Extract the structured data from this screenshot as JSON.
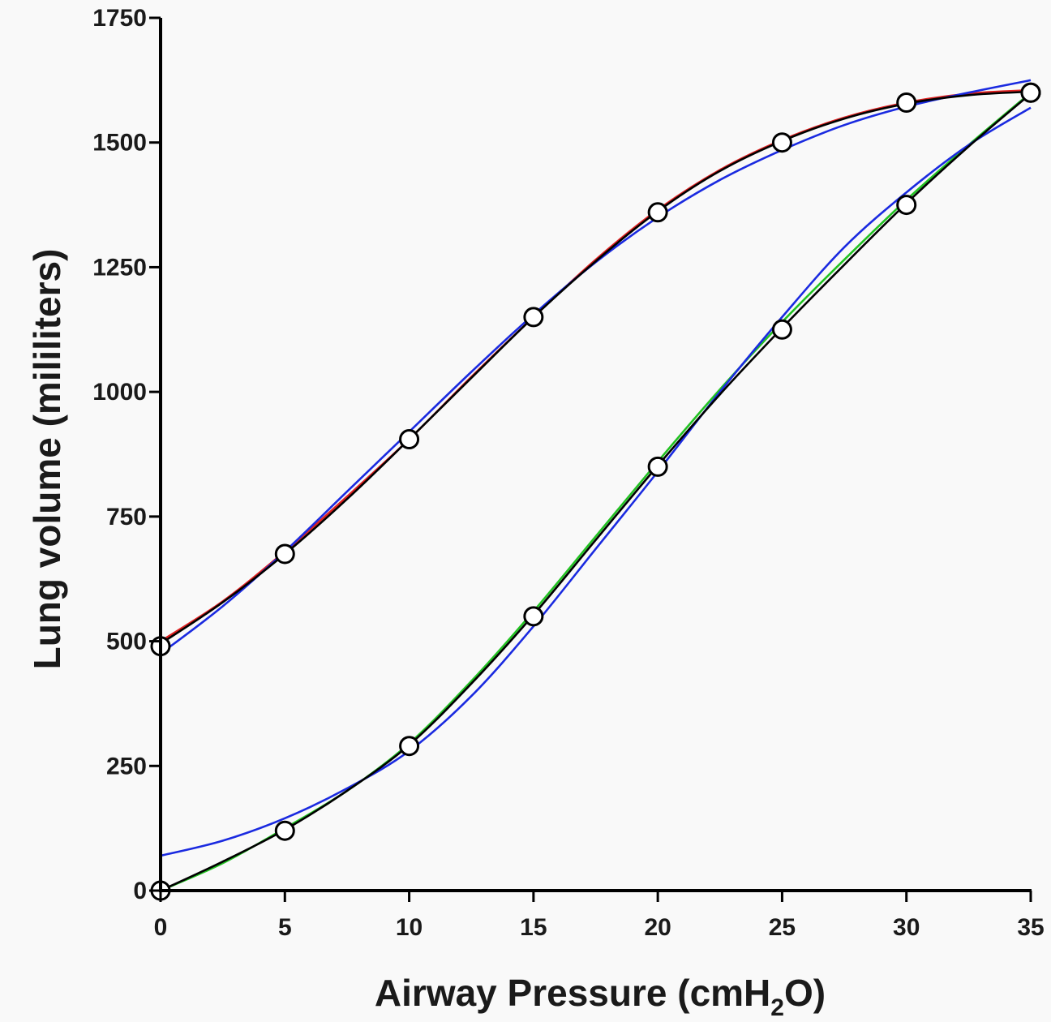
{
  "chart_data": {
    "type": "line",
    "title": "",
    "xlabel": "Airway Pressure (cmH",
    "xlabel_sub": "2",
    "xlabel_end": "O)",
    "ylabel": "Lung volume (mililiters)",
    "xlim": [
      0,
      35
    ],
    "ylim": [
      0,
      1750
    ],
    "x_ticks": [
      0,
      5,
      10,
      15,
      20,
      25,
      30,
      35
    ],
    "y_ticks": [
      0,
      250,
      500,
      750,
      1000,
      1250,
      1500,
      1750
    ],
    "grid": false,
    "legend": "none",
    "colors": {
      "red": "#e02020",
      "green": "#22c222",
      "blue": "#1a2ae0",
      "black": "#000000"
    },
    "series": [
      {
        "kind": "markers",
        "x": [
          0,
          5,
          10,
          15,
          20,
          25,
          30,
          35
        ],
        "y": [
          490,
          675,
          905,
          1150,
          1360,
          1500,
          1580,
          1600
        ]
      },
      {
        "kind": "markers",
        "x": [
          0,
          5,
          10,
          15,
          20,
          25,
          30,
          35
        ],
        "y": [
          0,
          120,
          290,
          550,
          850,
          1125,
          1375,
          1600
        ]
      },
      {
        "kind": "line",
        "color": "red",
        "x": [
          0,
          2.5,
          5,
          7.5,
          10,
          12.5,
          15,
          17.5,
          20,
          22.5,
          25,
          27.5,
          30,
          32.5,
          35
        ],
        "y": [
          500,
          580,
          680,
          790,
          905,
          1030,
          1150,
          1265,
          1365,
          1445,
          1505,
          1550,
          1580,
          1598,
          1605
        ]
      },
      {
        "kind": "line",
        "color": "blue",
        "x": [
          0,
          2.5,
          5,
          7.5,
          10,
          12.5,
          15,
          17.5,
          20,
          22.5,
          25,
          27.5,
          30,
          32.5,
          35
        ],
        "y": [
          475,
          570,
          680,
          800,
          920,
          1040,
          1155,
          1260,
          1350,
          1425,
          1485,
          1535,
          1572,
          1600,
          1625
        ]
      },
      {
        "kind": "line",
        "color": "black",
        "x": [
          0,
          2.5,
          5,
          7.5,
          10,
          12.5,
          15,
          17.5,
          20,
          22.5,
          25,
          27.5,
          30,
          32.5,
          35
        ],
        "y": [
          495,
          578,
          675,
          785,
          905,
          1028,
          1150,
          1262,
          1362,
          1443,
          1503,
          1548,
          1578,
          1595,
          1602
        ]
      },
      {
        "kind": "line",
        "color": "green",
        "x": [
          0,
          2.5,
          5,
          7.5,
          10,
          12.5,
          15,
          17.5,
          20,
          22.5,
          25,
          27.5,
          30,
          32.5,
          35
        ],
        "y": [
          0,
          55,
          125,
          200,
          295,
          420,
          560,
          710,
          860,
          1005,
          1140,
          1265,
          1385,
          1495,
          1600
        ]
      },
      {
        "kind": "line",
        "color": "blue",
        "x": [
          0,
          2.5,
          5,
          7.5,
          10,
          12.5,
          15,
          17.5,
          20,
          22.5,
          25,
          27.5,
          30,
          32.5,
          35
        ],
        "y": [
          70,
          100,
          145,
          205,
          280,
          390,
          530,
          685,
          840,
          1000,
          1150,
          1290,
          1400,
          1495,
          1570
        ]
      },
      {
        "kind": "line",
        "color": "black",
        "x": [
          0,
          2.5,
          5,
          7.5,
          10,
          12.5,
          15,
          17.5,
          20,
          22.5,
          25,
          27.5,
          30,
          32.5,
          35
        ],
        "y": [
          0,
          58,
          122,
          200,
          292,
          415,
          553,
          703,
          852,
          995,
          1128,
          1255,
          1378,
          1492,
          1598
        ]
      }
    ]
  }
}
